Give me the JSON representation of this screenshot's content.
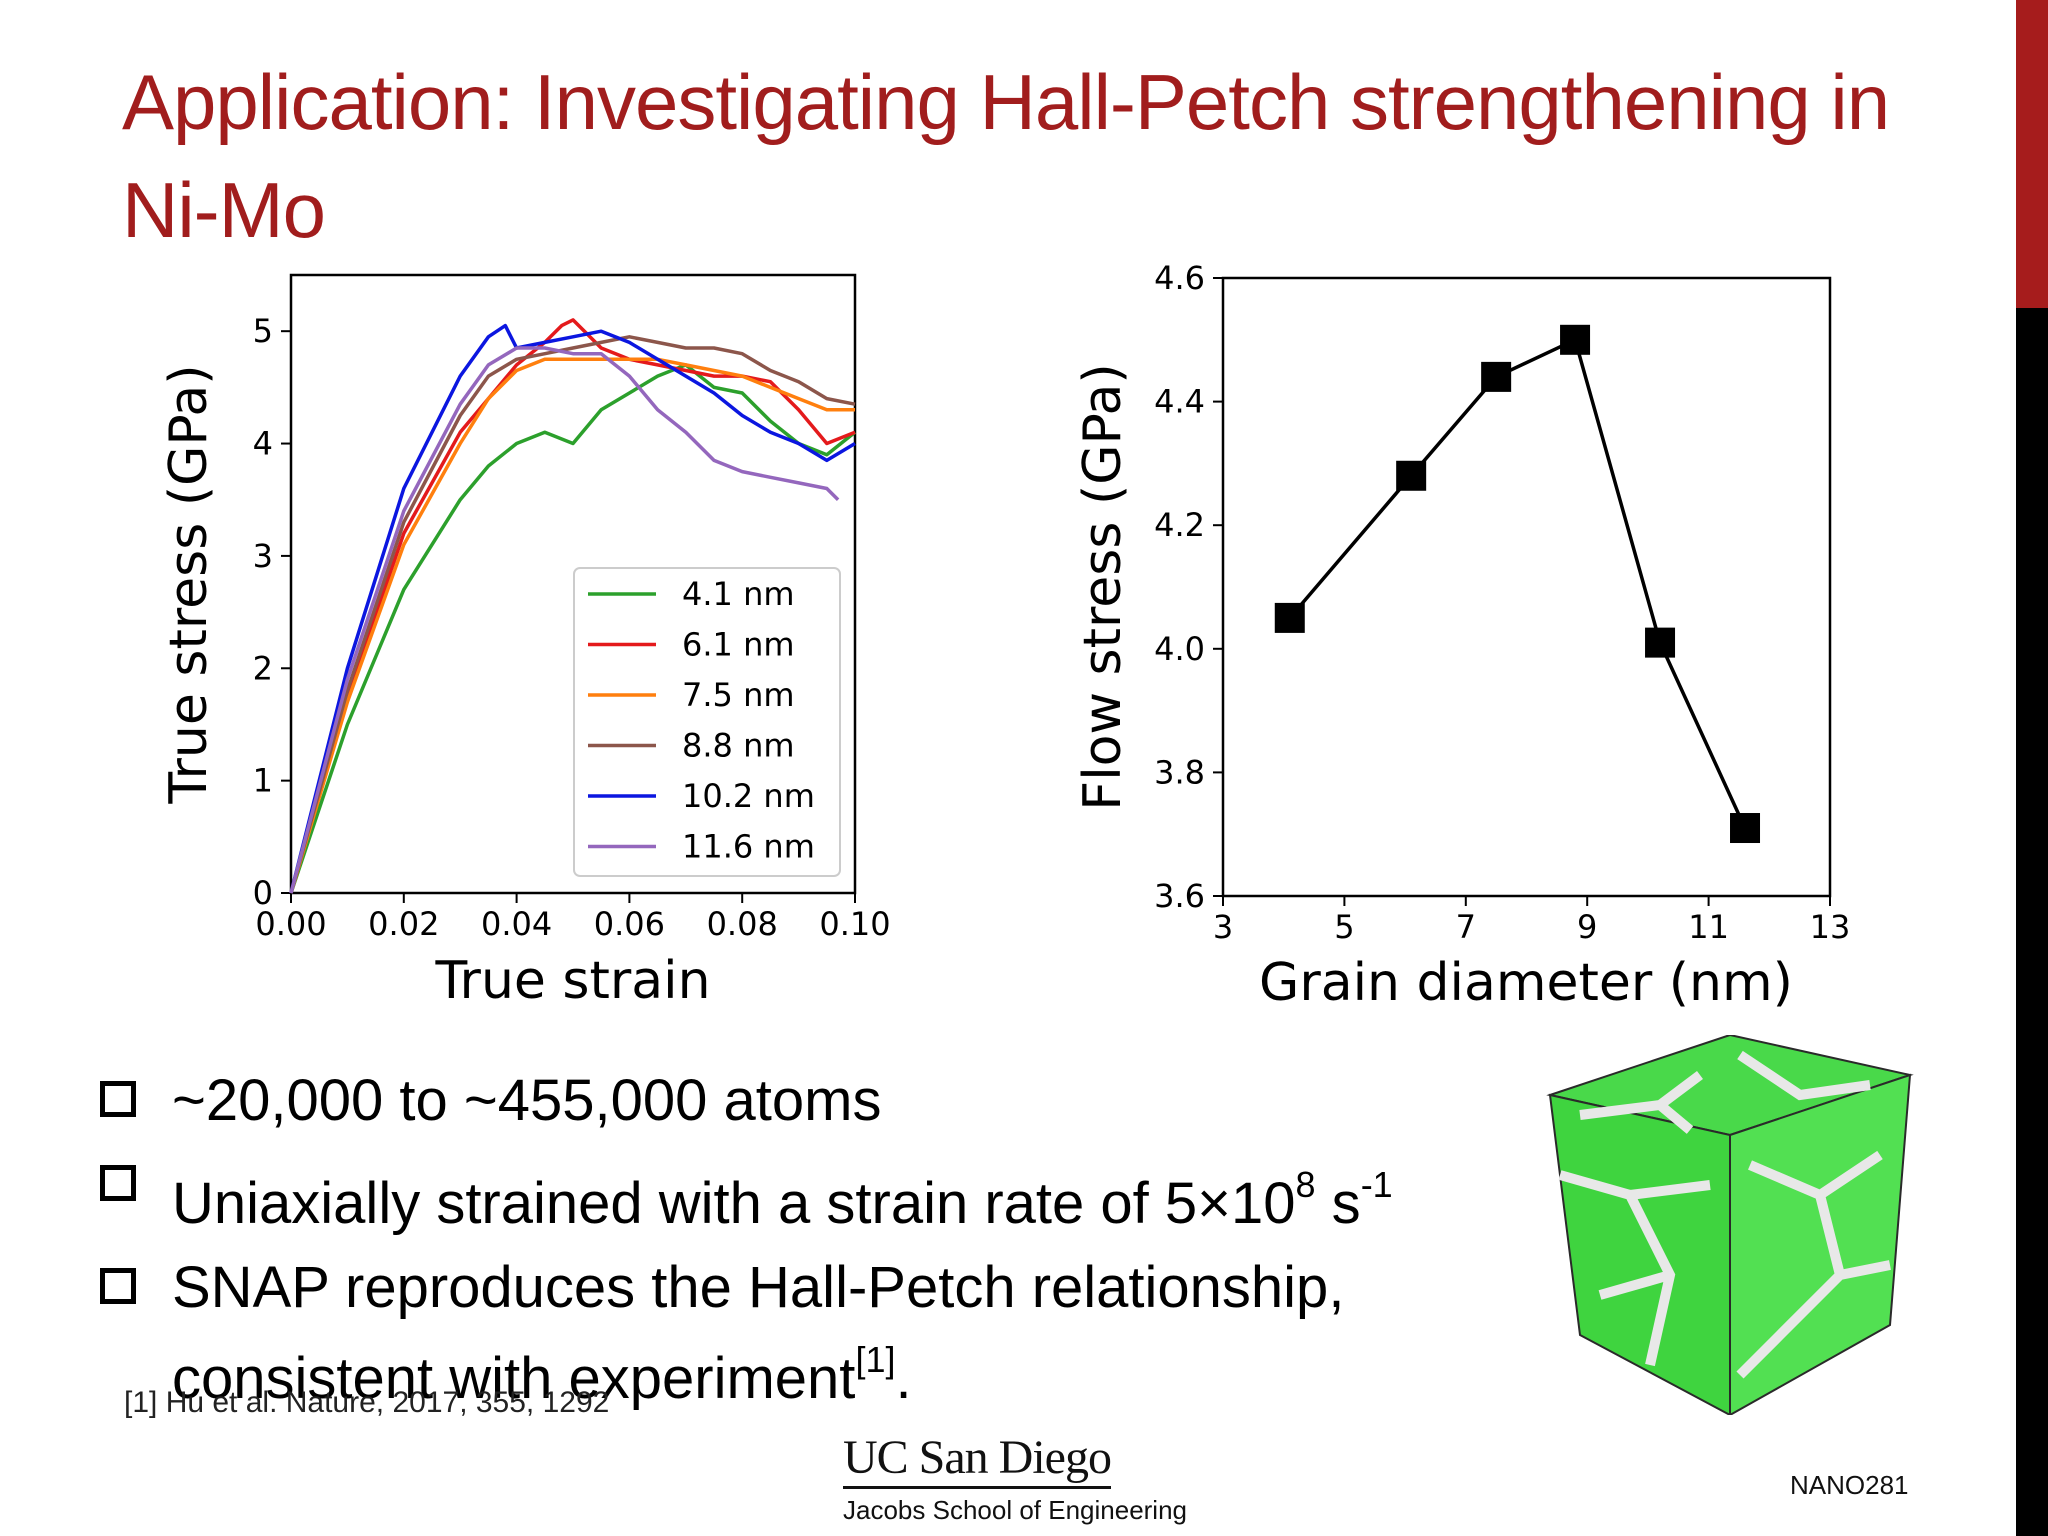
{
  "slide": {
    "title": "Application: Investigating Hall-Petch strengthening in Ni-Mo",
    "accent_color": "#a11d1d",
    "course": "NANO281"
  },
  "bullets": {
    "b1": "~20,000 to ~455,000 atoms",
    "b2_text": "Uniaxially strained with a strain rate of 5×10",
    "b2_exp": "8",
    "b2_unit": " s",
    "b2_unit_exp": "-1",
    "b3_text": "SNAP reproduces the Hall-Petch relationship, consistent with experiment",
    "b3_ref": "[1]",
    "b3_end": "."
  },
  "footnote": "[1] Hu et al. Nature, 2017, 355, 1292",
  "logo": {
    "line1": "UC San Diego",
    "line2": "Jacobs School of Engineering"
  },
  "chart_data": [
    {
      "type": "line",
      "xlabel": "True strain",
      "ylabel": "True stress (GPa)",
      "xlim": [
        0.0,
        0.1
      ],
      "ylim": [
        0,
        5.5
      ],
      "xticks": [
        "0.00",
        "0.02",
        "0.04",
        "0.06",
        "0.08",
        "0.10"
      ],
      "yticks": [
        "0",
        "1",
        "2",
        "3",
        "4",
        "5"
      ],
      "legend_position": "lower-right",
      "series": [
        {
          "name": "4.1 nm",
          "color": "#2ca02c",
          "x": [
            0,
            0.01,
            0.02,
            0.03,
            0.035,
            0.04,
            0.045,
            0.05,
            0.055,
            0.06,
            0.065,
            0.07,
            0.075,
            0.08,
            0.085,
            0.09,
            0.095,
            0.1
          ],
          "y": [
            0,
            1.5,
            2.7,
            3.5,
            3.8,
            4.0,
            4.1,
            4.0,
            4.3,
            4.45,
            4.6,
            4.7,
            4.5,
            4.45,
            4.2,
            4.0,
            3.9,
            4.1
          ]
        },
        {
          "name": "6.1 nm",
          "color": "#e41a1c",
          "x": [
            0,
            0.01,
            0.02,
            0.03,
            0.035,
            0.04,
            0.045,
            0.048,
            0.05,
            0.055,
            0.06,
            0.065,
            0.07,
            0.075,
            0.08,
            0.085,
            0.09,
            0.095,
            0.1
          ],
          "y": [
            0,
            1.75,
            3.2,
            4.1,
            4.4,
            4.7,
            4.9,
            5.05,
            5.1,
            4.85,
            4.75,
            4.7,
            4.65,
            4.6,
            4.6,
            4.55,
            4.3,
            4.0,
            4.1
          ]
        },
        {
          "name": "7.5 nm",
          "color": "#ff7f0e",
          "x": [
            0,
            0.01,
            0.02,
            0.03,
            0.035,
            0.04,
            0.045,
            0.05,
            0.055,
            0.06,
            0.065,
            0.07,
            0.075,
            0.08,
            0.085,
            0.09,
            0.095,
            0.1
          ],
          "y": [
            0,
            1.7,
            3.1,
            4.0,
            4.4,
            4.65,
            4.75,
            4.75,
            4.75,
            4.75,
            4.75,
            4.7,
            4.65,
            4.6,
            4.5,
            4.4,
            4.3,
            4.3
          ]
        },
        {
          "name": "8.8 nm",
          "color": "#8c564b",
          "x": [
            0,
            0.01,
            0.02,
            0.03,
            0.035,
            0.04,
            0.045,
            0.05,
            0.055,
            0.06,
            0.065,
            0.07,
            0.075,
            0.08,
            0.085,
            0.09,
            0.095,
            0.1
          ],
          "y": [
            0,
            1.8,
            3.3,
            4.25,
            4.6,
            4.75,
            4.8,
            4.85,
            4.9,
            4.95,
            4.9,
            4.85,
            4.85,
            4.8,
            4.65,
            4.55,
            4.4,
            4.35
          ]
        },
        {
          "name": "10.2 nm",
          "color": "#0b16e0",
          "x": [
            0,
            0.01,
            0.02,
            0.03,
            0.035,
            0.038,
            0.04,
            0.045,
            0.05,
            0.055,
            0.06,
            0.065,
            0.07,
            0.075,
            0.08,
            0.085,
            0.09,
            0.095,
            0.1
          ],
          "y": [
            0,
            2.0,
            3.6,
            4.6,
            4.95,
            5.05,
            4.85,
            4.9,
            4.95,
            5.0,
            4.9,
            4.75,
            4.6,
            4.45,
            4.25,
            4.1,
            4.0,
            3.85,
            4.0
          ]
        },
        {
          "name": "11.6 nm",
          "color": "#9467bd",
          "x": [
            0,
            0.01,
            0.02,
            0.03,
            0.035,
            0.04,
            0.045,
            0.05,
            0.055,
            0.06,
            0.065,
            0.07,
            0.075,
            0.08,
            0.085,
            0.09,
            0.095,
            0.097
          ],
          "y": [
            0,
            1.9,
            3.4,
            4.35,
            4.7,
            4.85,
            4.85,
            4.8,
            4.8,
            4.6,
            4.3,
            4.1,
            3.85,
            3.75,
            3.7,
            3.65,
            3.6,
            3.5
          ]
        }
      ]
    },
    {
      "type": "line",
      "marker": "square",
      "xlabel": "Grain diameter (nm)",
      "ylabel": "Flow stress (GPa)",
      "xlim": [
        3,
        13
      ],
      "ylim": [
        3.6,
        4.6
      ],
      "xticks": [
        "3",
        "5",
        "7",
        "9",
        "11",
        "13"
      ],
      "yticks": [
        "3.6",
        "3.8",
        "4.0",
        "4.2",
        "4.4",
        "4.6"
      ],
      "series": [
        {
          "name": "Flow stress",
          "color": "#000000",
          "x": [
            4.1,
            6.1,
            7.5,
            8.8,
            10.2,
            11.6
          ],
          "y": [
            4.05,
            4.28,
            4.44,
            4.5,
            4.01,
            3.71
          ]
        }
      ]
    }
  ]
}
